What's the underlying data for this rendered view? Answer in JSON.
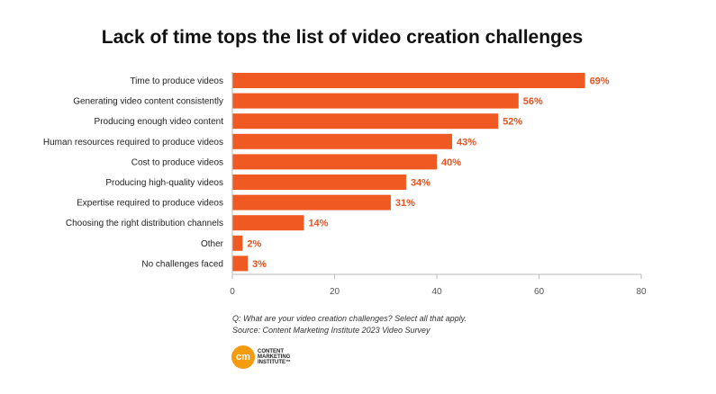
{
  "chart_data": {
    "type": "bar",
    "orientation": "horizontal",
    "title": "Lack of time tops the list of video creation challenges",
    "categories": [
      "Time to produce videos",
      "Generating video content consistently",
      "Producing enough video content",
      "Human resources required to produce videos",
      "Cost to produce videos",
      "Producing high-quality videos",
      "Expertise required to produce videos",
      "Choosing the right distribution channels",
      "Other",
      "No challenges faced"
    ],
    "values": [
      69,
      56,
      52,
      43,
      40,
      34,
      31,
      14,
      2,
      3
    ],
    "value_labels": [
      "69%",
      "56%",
      "52%",
      "43%",
      "40%",
      "34%",
      "31%",
      "14%",
      "2%",
      "3%"
    ],
    "xlim": [
      0,
      80
    ],
    "xticks": [
      "0",
      "20",
      "40",
      "60",
      "80"
    ],
    "grid": false,
    "bar_color": "#f05a22",
    "label_color": "#e8531f"
  },
  "notes": {
    "question": "Q: What are your video creation challenges? Select all that apply.",
    "source": "Source: Content Marketing Institute 2023 Video Survey"
  },
  "logo": {
    "mark": "cm",
    "text": "CONTENT MARKETING INSTITUTE™"
  }
}
